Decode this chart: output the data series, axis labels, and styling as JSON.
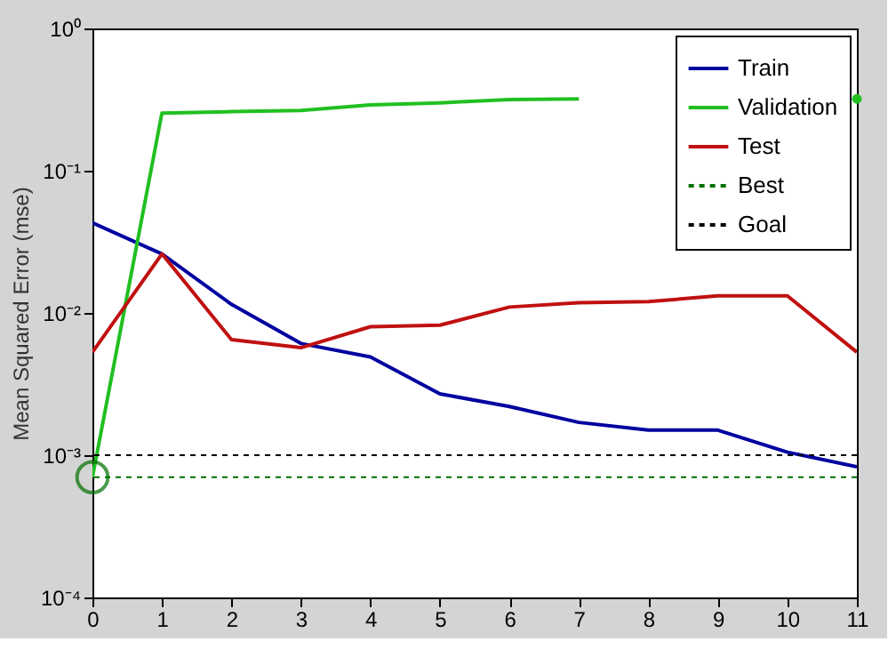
{
  "chart_data": {
    "type": "line",
    "ylabel": "Mean Squared Error  (mse)",
    "log": "y",
    "grid": false,
    "legend": "top right",
    "line_style": "solid",
    "marker": "none",
    "x": [
      0,
      1,
      2,
      3,
      4,
      5,
      6,
      7,
      8,
      9,
      10,
      11
    ],
    "xlim": [
      0,
      11
    ],
    "xticks": [
      0,
      1,
      2,
      3,
      4,
      5,
      6,
      7,
      8,
      9,
      10,
      11
    ],
    "ylim": [
      0.0001,
      1
    ],
    "yticks": [
      {
        "value": 0.0001,
        "label": "10⁻⁴"
      },
      {
        "value": 0.001,
        "label": "10⁻³"
      },
      {
        "value": 0.01,
        "label": "10⁻²"
      },
      {
        "value": 0.1,
        "label": "10⁻¹"
      },
      {
        "value": 1,
        "label": "10⁰"
      }
    ],
    "series": [
      {
        "name": "Train",
        "color": "#0000a0",
        "values": [
          0.043,
          0.026,
          0.0115,
          0.0061,
          0.0049,
          0.0027,
          0.0022,
          0.0017,
          0.0015,
          0.0015,
          0.00105,
          0.00083
        ]
      },
      {
        "name": "Validation",
        "color": "#20c020",
        "values": [
          0.0007,
          0.254,
          0.26,
          0.265,
          0.29,
          0.3,
          0.316,
          0.32,
          null,
          null,
          null,
          0.32
        ]
      },
      {
        "name": "Test",
        "color": "#c01010",
        "values": [
          0.0053,
          0.026,
          0.0065,
          0.0057,
          0.008,
          0.0082,
          0.011,
          0.0118,
          0.012,
          0.0132,
          0.0132,
          0.0053
        ]
      },
      {
        "type": "scatter",
        "marker": "circle",
        "color": "#007000",
        "x": [
          0
        ],
        "values": [
          0.0007
        ]
      }
    ],
    "ref_lines": [
      {
        "axis": "y",
        "value": 0.0007,
        "label": "Best",
        "color": "#007000",
        "line_style": "dashed"
      },
      {
        "axis": "y",
        "value": 0.001,
        "label": "Goal",
        "color": "#000000",
        "line_style": "dashed"
      }
    ]
  }
}
